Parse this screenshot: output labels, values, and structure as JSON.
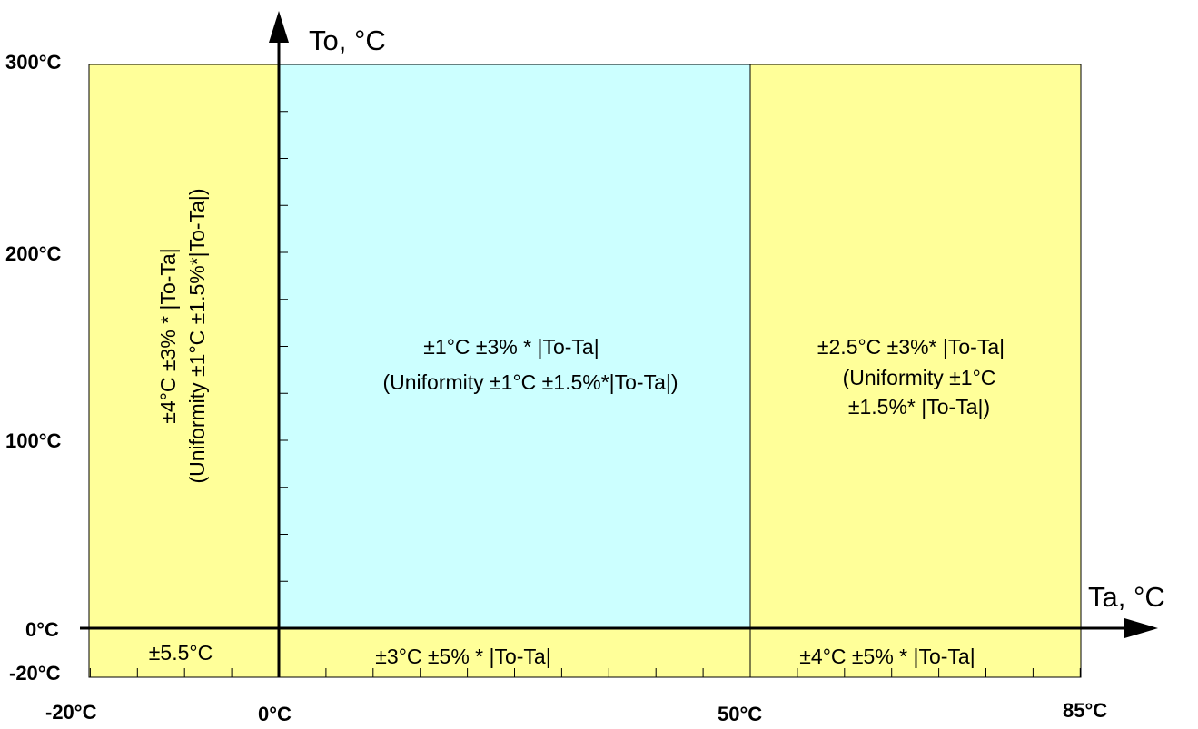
{
  "axes": {
    "x_title": "Ta, °C",
    "y_title": "To, °C",
    "x_ticks": [
      {
        "value": -20,
        "label": "-20°C"
      },
      {
        "value": 0,
        "label": "0°C"
      },
      {
        "value": 50,
        "label": "50°C"
      },
      {
        "value": 85,
        "label": "85°C"
      }
    ],
    "y_ticks": [
      {
        "value": 300,
        "label": "300°C"
      },
      {
        "value": 200,
        "label": "200°C"
      },
      {
        "value": 100,
        "label": "100°C"
      },
      {
        "value": 0,
        "label": "0°C"
      },
      {
        "value": -20,
        "label": "-20°C"
      }
    ],
    "x_range": [
      -20,
      85
    ],
    "y_range": [
      -20,
      300
    ],
    "x_minor_step": 5,
    "y_minor_step": 25
  },
  "colors": {
    "yellow_zone": "#ffff99",
    "cyan_zone": "#ccffff",
    "line": "#000000"
  },
  "zones": {
    "left_vertical": {
      "line1": "±4°C ±3% * |To-Ta|",
      "line2": "(Uniformity ±1°C ±1.5%*|To-Ta|)"
    },
    "center": {
      "line1": "±1°C ±3% * |To-Ta|",
      "line2": "(Uniformity ±1°C ±1.5%*|To-Ta|)"
    },
    "right": {
      "line1": "±2.5°C ±3%* |To-Ta|",
      "line2": "(Uniformity ±1°C",
      "line3": "±1.5%* |To-Ta|)"
    },
    "bottom_left": "±5.5°C",
    "bottom_center": "±3°C ±5% * |To-Ta|",
    "bottom_right": "±4°C ±5% * |To-Ta|"
  }
}
